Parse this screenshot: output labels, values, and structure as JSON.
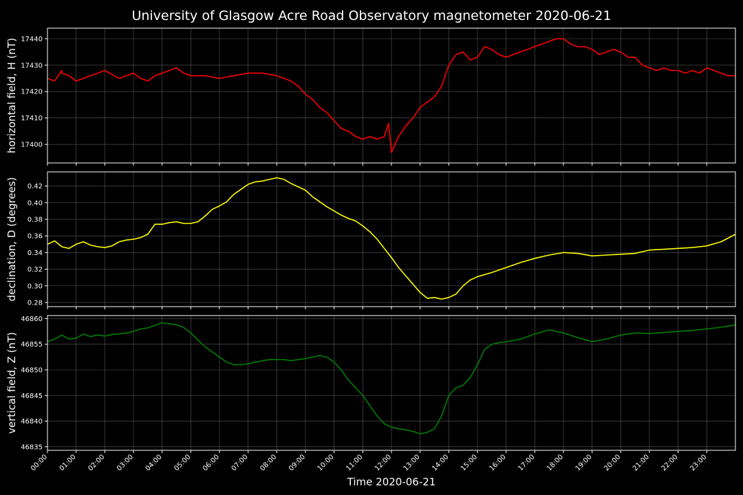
{
  "title": "University of Glasgow Acre Road Observatory magnetometer 2020-06-21",
  "xlabel": "Time 2020-06-21",
  "background": "#000000",
  "grid_color": "#5a5a5a",
  "chart_data": [
    {
      "type": "line",
      "ylabel": "horizontal field, H (nT)",
      "color": "#ff0000",
      "x_unit": "hours",
      "xlim": [
        0,
        24
      ],
      "ylim": [
        17393,
        17444
      ],
      "yticks": [
        17400,
        17410,
        17420,
        17430,
        17440
      ],
      "ytick_labels": [
        "17400",
        "17410",
        "17420",
        "17430",
        "17440"
      ],
      "grid": true,
      "x": [
        0,
        0.25,
        0.5,
        0.5,
        0.75,
        1,
        1.25,
        1.5,
        1.75,
        2,
        2.5,
        2.75,
        3,
        3.25,
        3.5,
        3.75,
        4,
        4.25,
        4.5,
        4.75,
        5,
        5.5,
        6,
        6.5,
        7,
        7.5,
        8,
        8.25,
        8.5,
        8.75,
        9,
        9.25,
        9.5,
        9.75,
        10,
        10.25,
        10.5,
        10.75,
        11,
        11.25,
        11.5,
        11.75,
        11.9,
        12,
        12.25,
        12.5,
        12.75,
        13,
        13.25,
        13.5,
        13.75,
        14,
        14.25,
        14.5,
        14.75,
        15,
        15.25,
        15.5,
        15.75,
        16,
        16.25,
        16.5,
        16.75,
        17,
        17.25,
        17.5,
        17.75,
        18,
        18.25,
        18.5,
        18.75,
        19,
        19.25,
        19.5,
        19.75,
        20,
        20.25,
        20.5,
        20.75,
        21,
        21.25,
        21.5,
        21.75,
        22,
        22.25,
        22.5,
        22.75,
        23,
        23.25,
        23.5,
        23.75,
        24
      ],
      "y": [
        17425,
        17424,
        17428,
        17427,
        17426,
        17424,
        17425,
        17426,
        17427,
        17428,
        17425,
        17426,
        17427,
        17425,
        17424,
        17426,
        17427,
        17428,
        17429,
        17427,
        17426,
        17426,
        17425,
        17426,
        17427,
        17427,
        17426,
        17425,
        17424,
        17422,
        17419,
        17417,
        17414,
        17412,
        17409,
        17406,
        17405,
        17403,
        17402,
        17403,
        17402,
        17403,
        17408,
        17397,
        17403,
        17407,
        17410,
        17414,
        17416,
        17418,
        17422,
        17430,
        17434,
        17435,
        17432,
        17433,
        17437,
        17436,
        17434,
        17433,
        17434,
        17435,
        17436,
        17437,
        17438,
        17439,
        17440,
        17440,
        17438,
        17437,
        17437,
        17436,
        17434,
        17435,
        17436,
        17435,
        17433,
        17433,
        17430,
        17429,
        17428,
        17429,
        17428,
        17428,
        17427,
        17428,
        17427,
        17429,
        17428,
        17427,
        17426,
        17426
      ],
      "xticks": [
        0,
        1,
        2,
        3,
        4,
        5,
        6,
        7,
        8,
        9,
        10,
        11,
        12,
        13,
        14,
        15,
        16,
        17,
        18,
        19,
        20,
        21,
        22,
        23
      ]
    },
    {
      "type": "line",
      "ylabel": "declination, D (degrees)",
      "color": "#ffff00",
      "x_unit": "hours",
      "xlim": [
        0,
        24
      ],
      "ylim": [
        0.275,
        0.437
      ],
      "yticks": [
        0.28,
        0.3,
        0.32,
        0.34,
        0.36,
        0.38,
        0.4,
        0.42
      ],
      "ytick_labels": [
        "0.28",
        "0.30",
        "0.32",
        "0.34",
        "0.36",
        "0.38",
        "0.40",
        "0.42"
      ],
      "grid": true,
      "x": [
        0,
        0.25,
        0.5,
        0.75,
        1,
        1.25,
        1.5,
        1.75,
        2,
        2.25,
        2.5,
        2.75,
        3,
        3.25,
        3.5,
        3.75,
        4,
        4.25,
        4.5,
        4.75,
        5,
        5.25,
        5.5,
        5.75,
        6,
        6.25,
        6.5,
        6.75,
        7,
        7.25,
        7.5,
        7.75,
        8,
        8.25,
        8.5,
        8.75,
        9,
        9.25,
        9.5,
        9.75,
        10,
        10.25,
        10.5,
        10.75,
        11,
        11.25,
        11.5,
        11.75,
        12,
        12.25,
        12.5,
        12.75,
        13,
        13.25,
        13.5,
        13.75,
        14,
        14.25,
        14.5,
        14.75,
        15,
        15.5,
        16,
        16.5,
        17,
        17.5,
        18,
        18.5,
        19,
        19.5,
        20,
        20.5,
        21,
        21.5,
        22,
        22.5,
        23,
        23.5,
        24
      ],
      "y": [
        0.35,
        0.354,
        0.347,
        0.345,
        0.35,
        0.353,
        0.349,
        0.347,
        0.346,
        0.348,
        0.353,
        0.355,
        0.356,
        0.358,
        0.362,
        0.374,
        0.374,
        0.376,
        0.377,
        0.375,
        0.375,
        0.377,
        0.384,
        0.392,
        0.396,
        0.401,
        0.41,
        0.416,
        0.422,
        0.425,
        0.426,
        0.428,
        0.43,
        0.428,
        0.423,
        0.419,
        0.415,
        0.407,
        0.401,
        0.395,
        0.39,
        0.385,
        0.381,
        0.378,
        0.372,
        0.365,
        0.356,
        0.345,
        0.334,
        0.322,
        0.312,
        0.302,
        0.292,
        0.285,
        0.286,
        0.284,
        0.286,
        0.29,
        0.3,
        0.307,
        0.311,
        0.316,
        0.322,
        0.328,
        0.333,
        0.337,
        0.34,
        0.339,
        0.336,
        0.337,
        0.338,
        0.339,
        0.343,
        0.344,
        0.345,
        0.346,
        0.348,
        0.353,
        0.362
      ],
      "xticks": [
        0,
        1,
        2,
        3,
        4,
        5,
        6,
        7,
        8,
        9,
        10,
        11,
        12,
        13,
        14,
        15,
        16,
        17,
        18,
        19,
        20,
        21,
        22,
        23
      ]
    },
    {
      "type": "line",
      "ylabel": "vertical field, Z (nT)",
      "color": "#008000",
      "x_unit": "hours",
      "xlim": [
        0,
        24
      ],
      "ylim": [
        46834.3,
        46860.6
      ],
      "yticks": [
        46835,
        46840,
        46845,
        46850,
        46855,
        46860
      ],
      "ytick_labels": [
        "46835",
        "46840",
        "46845",
        "46850",
        "46855",
        "46860"
      ],
      "grid": true,
      "x": [
        0,
        0.25,
        0.5,
        0.75,
        1,
        1.25,
        1.5,
        1.75,
        2,
        2.25,
        2.5,
        2.75,
        3,
        3.25,
        3.5,
        3.75,
        4,
        4.25,
        4.5,
        4.75,
        5,
        5.25,
        5.5,
        5.75,
        6,
        6.25,
        6.5,
        6.75,
        7,
        7.25,
        7.5,
        7.75,
        8,
        8.25,
        8.5,
        8.75,
        9,
        9.25,
        9.5,
        9.75,
        10,
        10.25,
        10.5,
        10.75,
        11,
        11.25,
        11.5,
        11.75,
        12,
        12.25,
        12.5,
        12.75,
        13,
        13.25,
        13.5,
        13.75,
        14,
        14.25,
        14.5,
        14.75,
        15,
        15.25,
        15.5,
        15.75,
        16,
        16.5,
        17,
        17.5,
        18,
        18.5,
        19,
        19.5,
        20,
        20.5,
        21,
        21.5,
        22,
        22.5,
        23,
        23.5,
        24
      ],
      "y": [
        46855.5,
        46856,
        46856.8,
        46856,
        46856.2,
        46857,
        46856.5,
        46856.8,
        46856.6,
        46856.9,
        46857,
        46857.2,
        46857.5,
        46858,
        46858.2,
        46858.7,
        46859.2,
        46859,
        46858.8,
        46858.3,
        46857.2,
        46855.8,
        46854.5,
        46853.5,
        46852.5,
        46851.5,
        46851,
        46851,
        46851.2,
        46851.5,
        46851.8,
        46852,
        46852,
        46852,
        46851.8,
        46852,
        46852.2,
        46852.5,
        46852.8,
        46852.5,
        46851.5,
        46850,
        46848,
        46846.5,
        46845,
        46843,
        46841,
        46839.5,
        46838.8,
        46838.5,
        46838.3,
        46838,
        46837.5,
        46837.8,
        46838.5,
        46841,
        46845,
        46846.5,
        46847,
        46848.5,
        46851,
        46854,
        46855,
        46855.3,
        46855.5,
        46856,
        46857,
        46857.8,
        46857.2,
        46856.3,
        46855.5,
        46856,
        46856.8,
        46857.2,
        46857.1,
        46857.3,
        46857.5,
        46857.7,
        46858,
        46858.3,
        46858.8
      ],
      "xticks": [
        0,
        1,
        2,
        3,
        4,
        5,
        6,
        7,
        8,
        9,
        10,
        11,
        12,
        13,
        14,
        15,
        16,
        17,
        18,
        19,
        20,
        21,
        22,
        23
      ],
      "xtick_labels": [
        "00:00",
        "01:00",
        "02:00",
        "03:00",
        "04:00",
        "05:00",
        "06:00",
        "07:00",
        "08:00",
        "09:00",
        "10:00",
        "11:00",
        "12:00",
        "13:00",
        "14:00",
        "15:00",
        "16:00",
        "17:00",
        "18:00",
        "19:00",
        "20:00",
        "21:00",
        "22:00",
        "23:00"
      ]
    }
  ]
}
